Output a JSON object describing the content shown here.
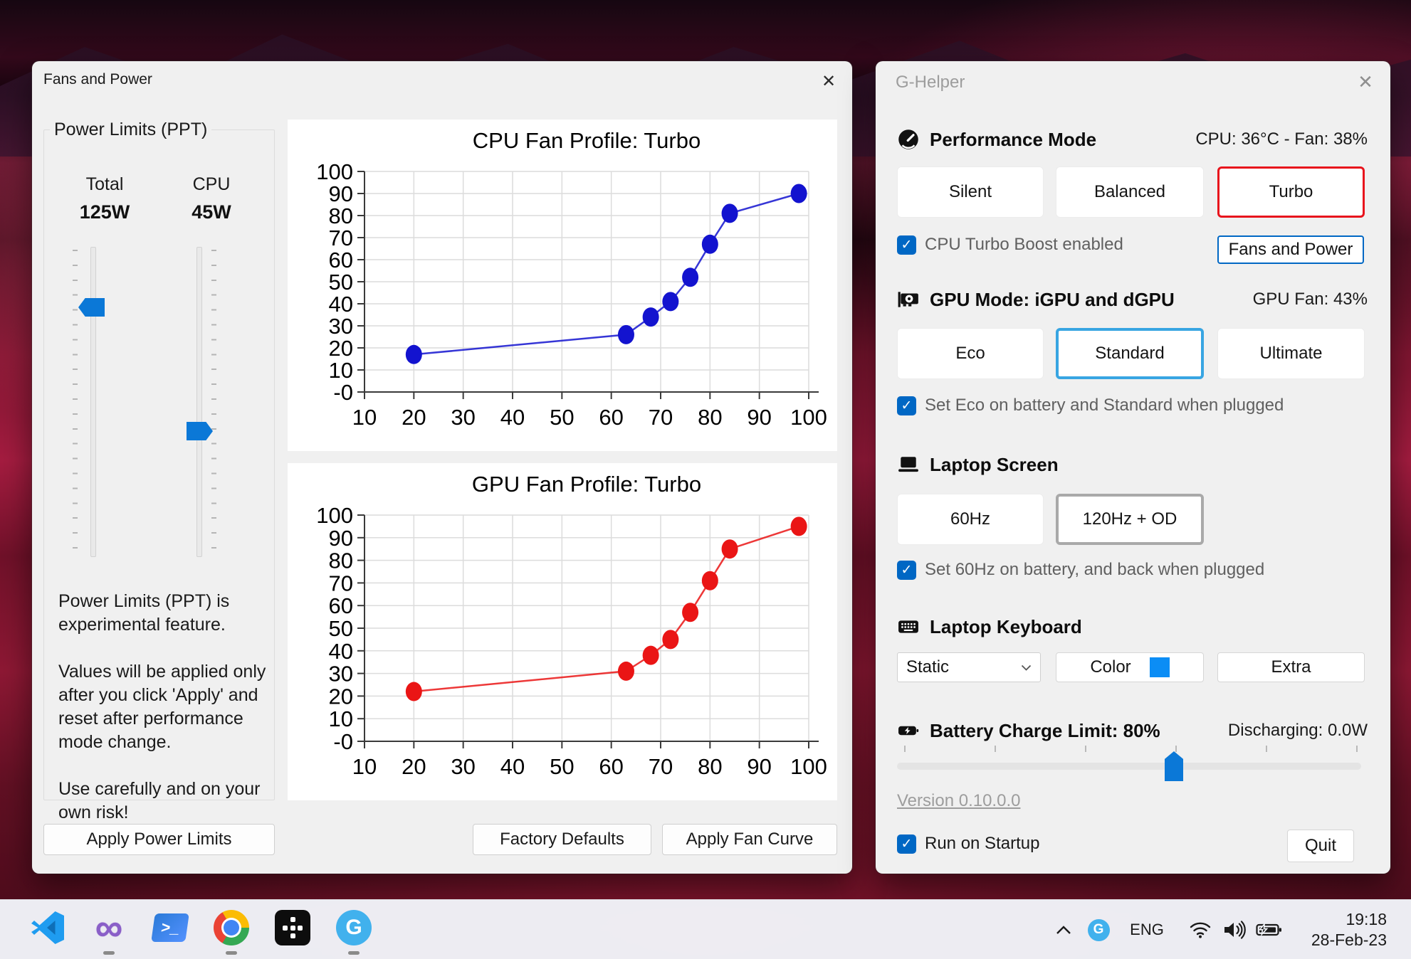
{
  "fans_window": {
    "title": "Fans and Power",
    "power_limits": {
      "group_label": "Power Limits (PPT)",
      "total_label": "Total",
      "total_value": "125W",
      "cpu_label": "CPU",
      "cpu_value": "45W",
      "note1": "Power Limits (PPT) is experimental  feature.",
      "note2": "Values will be applied only after you click 'Apply' and reset after performance mode  change.",
      "note3": "Use carefully and on your own risk!",
      "apply_button": "Apply Power Limits"
    },
    "factory_defaults_button": "Factory Defaults",
    "apply_fan_curve_button": "Apply Fan Curve"
  },
  "chart_data": [
    {
      "type": "line",
      "title": "CPU Fan Profile: Turbo",
      "x": [
        20,
        63,
        68,
        72,
        76,
        80,
        84,
        98
      ],
      "y": [
        17,
        26,
        34,
        41,
        52,
        67,
        81,
        90
      ],
      "color": "#1313cf",
      "xlim": [
        10,
        100
      ],
      "ylim": [
        0,
        100
      ],
      "xticks": [
        10,
        20,
        30,
        40,
        50,
        60,
        70,
        80,
        90,
        100
      ],
      "ytick_labels": [
        "100",
        "90",
        "80",
        "70",
        "60",
        "50",
        "40",
        "30",
        "20",
        "10",
        "-0"
      ],
      "grid": true,
      "legend": "none",
      "xlabel": "",
      "ylabel": ""
    },
    {
      "type": "line",
      "title": "GPU Fan Profile: Turbo",
      "x": [
        20,
        63,
        68,
        72,
        76,
        80,
        84,
        98
      ],
      "y": [
        22,
        31,
        38,
        45,
        57,
        71,
        85,
        95
      ],
      "color": "#ea1515",
      "xlim": [
        10,
        100
      ],
      "ylim": [
        0,
        100
      ],
      "xticks": [
        10,
        20,
        30,
        40,
        50,
        60,
        70,
        80,
        90,
        100
      ],
      "ytick_labels": [
        "100",
        "90",
        "80",
        "70",
        "60",
        "50",
        "40",
        "30",
        "20",
        "10",
        "-0"
      ],
      "grid": true,
      "legend": "none",
      "xlabel": "",
      "ylabel": ""
    }
  ],
  "ghelper_window": {
    "title": "G-Helper",
    "performance": {
      "heading": "Performance Mode",
      "status": "CPU: 36°C -  Fan: 38%",
      "modes": [
        "Silent",
        "Balanced",
        "Turbo"
      ],
      "selected_mode": "Turbo",
      "checkbox_label": "CPU Turbo Boost enabled",
      "fans_power_button": "Fans and Power"
    },
    "gpu": {
      "heading": "GPU Mode: iGPU and dGPU",
      "status": "GPU Fan: 43%",
      "modes": [
        "Eco",
        "Standard",
        "Ultimate"
      ],
      "selected_mode": "Standard",
      "checkbox_label": "Set Eco on battery and Standard when plugged"
    },
    "screen": {
      "heading": "Laptop Screen",
      "modes": [
        "60Hz",
        "120Hz + OD"
      ],
      "selected_mode": "120Hz + OD",
      "checkbox_label": "Set 60Hz on battery, and back when plugged"
    },
    "keyboard": {
      "heading": "Laptop Keyboard",
      "dropdown_value": "Static",
      "color_button": "Color",
      "swatch_color": "#0b8df5",
      "extra_button": "Extra"
    },
    "battery": {
      "heading": "Battery Charge Limit: 80%",
      "status": "Discharging: 0.0W",
      "slider_percent": 62
    },
    "footer": {
      "version": "Version 0.10.0.0",
      "startup_checkbox": "Run on Startup",
      "quit_button": "Quit"
    }
  },
  "taskbar": {
    "icons": [
      "vscode",
      "visual-studio",
      "powershell",
      "chrome",
      "black-dots-app",
      "g-helper"
    ],
    "running": [
      false,
      true,
      false,
      true,
      false,
      true
    ],
    "ghelper_letter": "G",
    "tray": {
      "language": "ENG",
      "time": "19:18",
      "date": "28-Feb-23"
    }
  }
}
